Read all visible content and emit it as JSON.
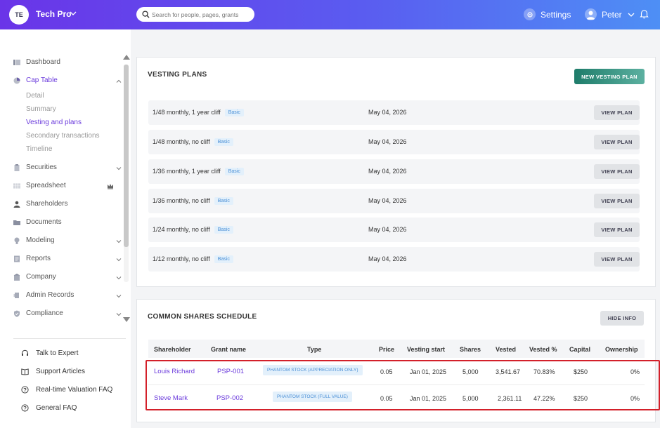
{
  "header": {
    "org_initials": "TE",
    "org_name": "Tech Pro",
    "search_placeholder": "Search for people, pages, grants",
    "settings_label": "Settings",
    "user_name": "Peter"
  },
  "sidebar": {
    "items": [
      {
        "label": "Dashboard"
      },
      {
        "label": "Cap Table"
      },
      {
        "label": "Securities"
      },
      {
        "label": "Spreadsheet"
      },
      {
        "label": "Shareholders"
      },
      {
        "label": "Documents"
      },
      {
        "label": "Modeling"
      },
      {
        "label": "Reports"
      },
      {
        "label": "Company"
      },
      {
        "label": "Admin Records"
      },
      {
        "label": "Compliance"
      }
    ],
    "cap_table_sub": [
      {
        "label": "Detail"
      },
      {
        "label": "Summary"
      },
      {
        "label": "Vesting and plans"
      },
      {
        "label": "Secondary transactions"
      },
      {
        "label": "Timeline"
      }
    ],
    "help": [
      {
        "label": "Talk to Expert"
      },
      {
        "label": "Support Articles"
      },
      {
        "label": "Real-time Valuation FAQ"
      },
      {
        "label": "General FAQ"
      }
    ]
  },
  "vesting": {
    "title": "VESTING PLANS",
    "new_button": "NEW VESTING PLAN",
    "view_label": "VIEW PLAN",
    "plans": [
      {
        "name": "1/48 monthly, 1 year cliff",
        "badge": "Basic",
        "date": "May 04, 2026"
      },
      {
        "name": "1/48 monthly, no cliff",
        "badge": "Basic",
        "date": "May 04, 2026"
      },
      {
        "name": "1/36 monthly, 1 year cliff",
        "badge": "Basic",
        "date": "May 04, 2026"
      },
      {
        "name": "1/36 monthly, no cliff",
        "badge": "Basic",
        "date": "May 04, 2026"
      },
      {
        "name": "1/24 monthly, no cliff",
        "badge": "Basic",
        "date": "May 04, 2026"
      },
      {
        "name": "1/12 monthly, no cliff",
        "badge": "Basic",
        "date": "May 04, 2026"
      }
    ]
  },
  "schedule": {
    "title": "COMMON SHARES SCHEDULE",
    "hide_button": "HIDE INFO",
    "columns": [
      "Shareholder",
      "Grant name",
      "Type",
      "Price",
      "Vesting start",
      "Shares",
      "Vested",
      "Vested %",
      "Capital",
      "Ownership"
    ],
    "rows": [
      {
        "shareholder": "Louis Richard",
        "grant": "PSP-001",
        "type": "PHANTOM STOCK (APPRECIATION ONLY)",
        "price": "0.05",
        "vesting_start": "Jan 01, 2025",
        "shares": "5,000",
        "vested": "3,541.67",
        "vested_pct": "70.83%",
        "capital": "$250",
        "ownership": "0%"
      },
      {
        "shareholder": "Steve Mark",
        "grant": "PSP-002",
        "type": "PHANTOM STOCK (FULL VALUE)",
        "price": "0.05",
        "vesting_start": "Jan 01, 2025",
        "shares": "5,000",
        "vested": "2,361.11",
        "vested_pct": "47.22%",
        "capital": "$250",
        "ownership": "0%"
      }
    ]
  },
  "colors": {
    "accent": "#6b3bdc",
    "primary_button": "#1e7c6a",
    "badge_text": "#4a8fd6",
    "highlight": "#d3202a"
  }
}
